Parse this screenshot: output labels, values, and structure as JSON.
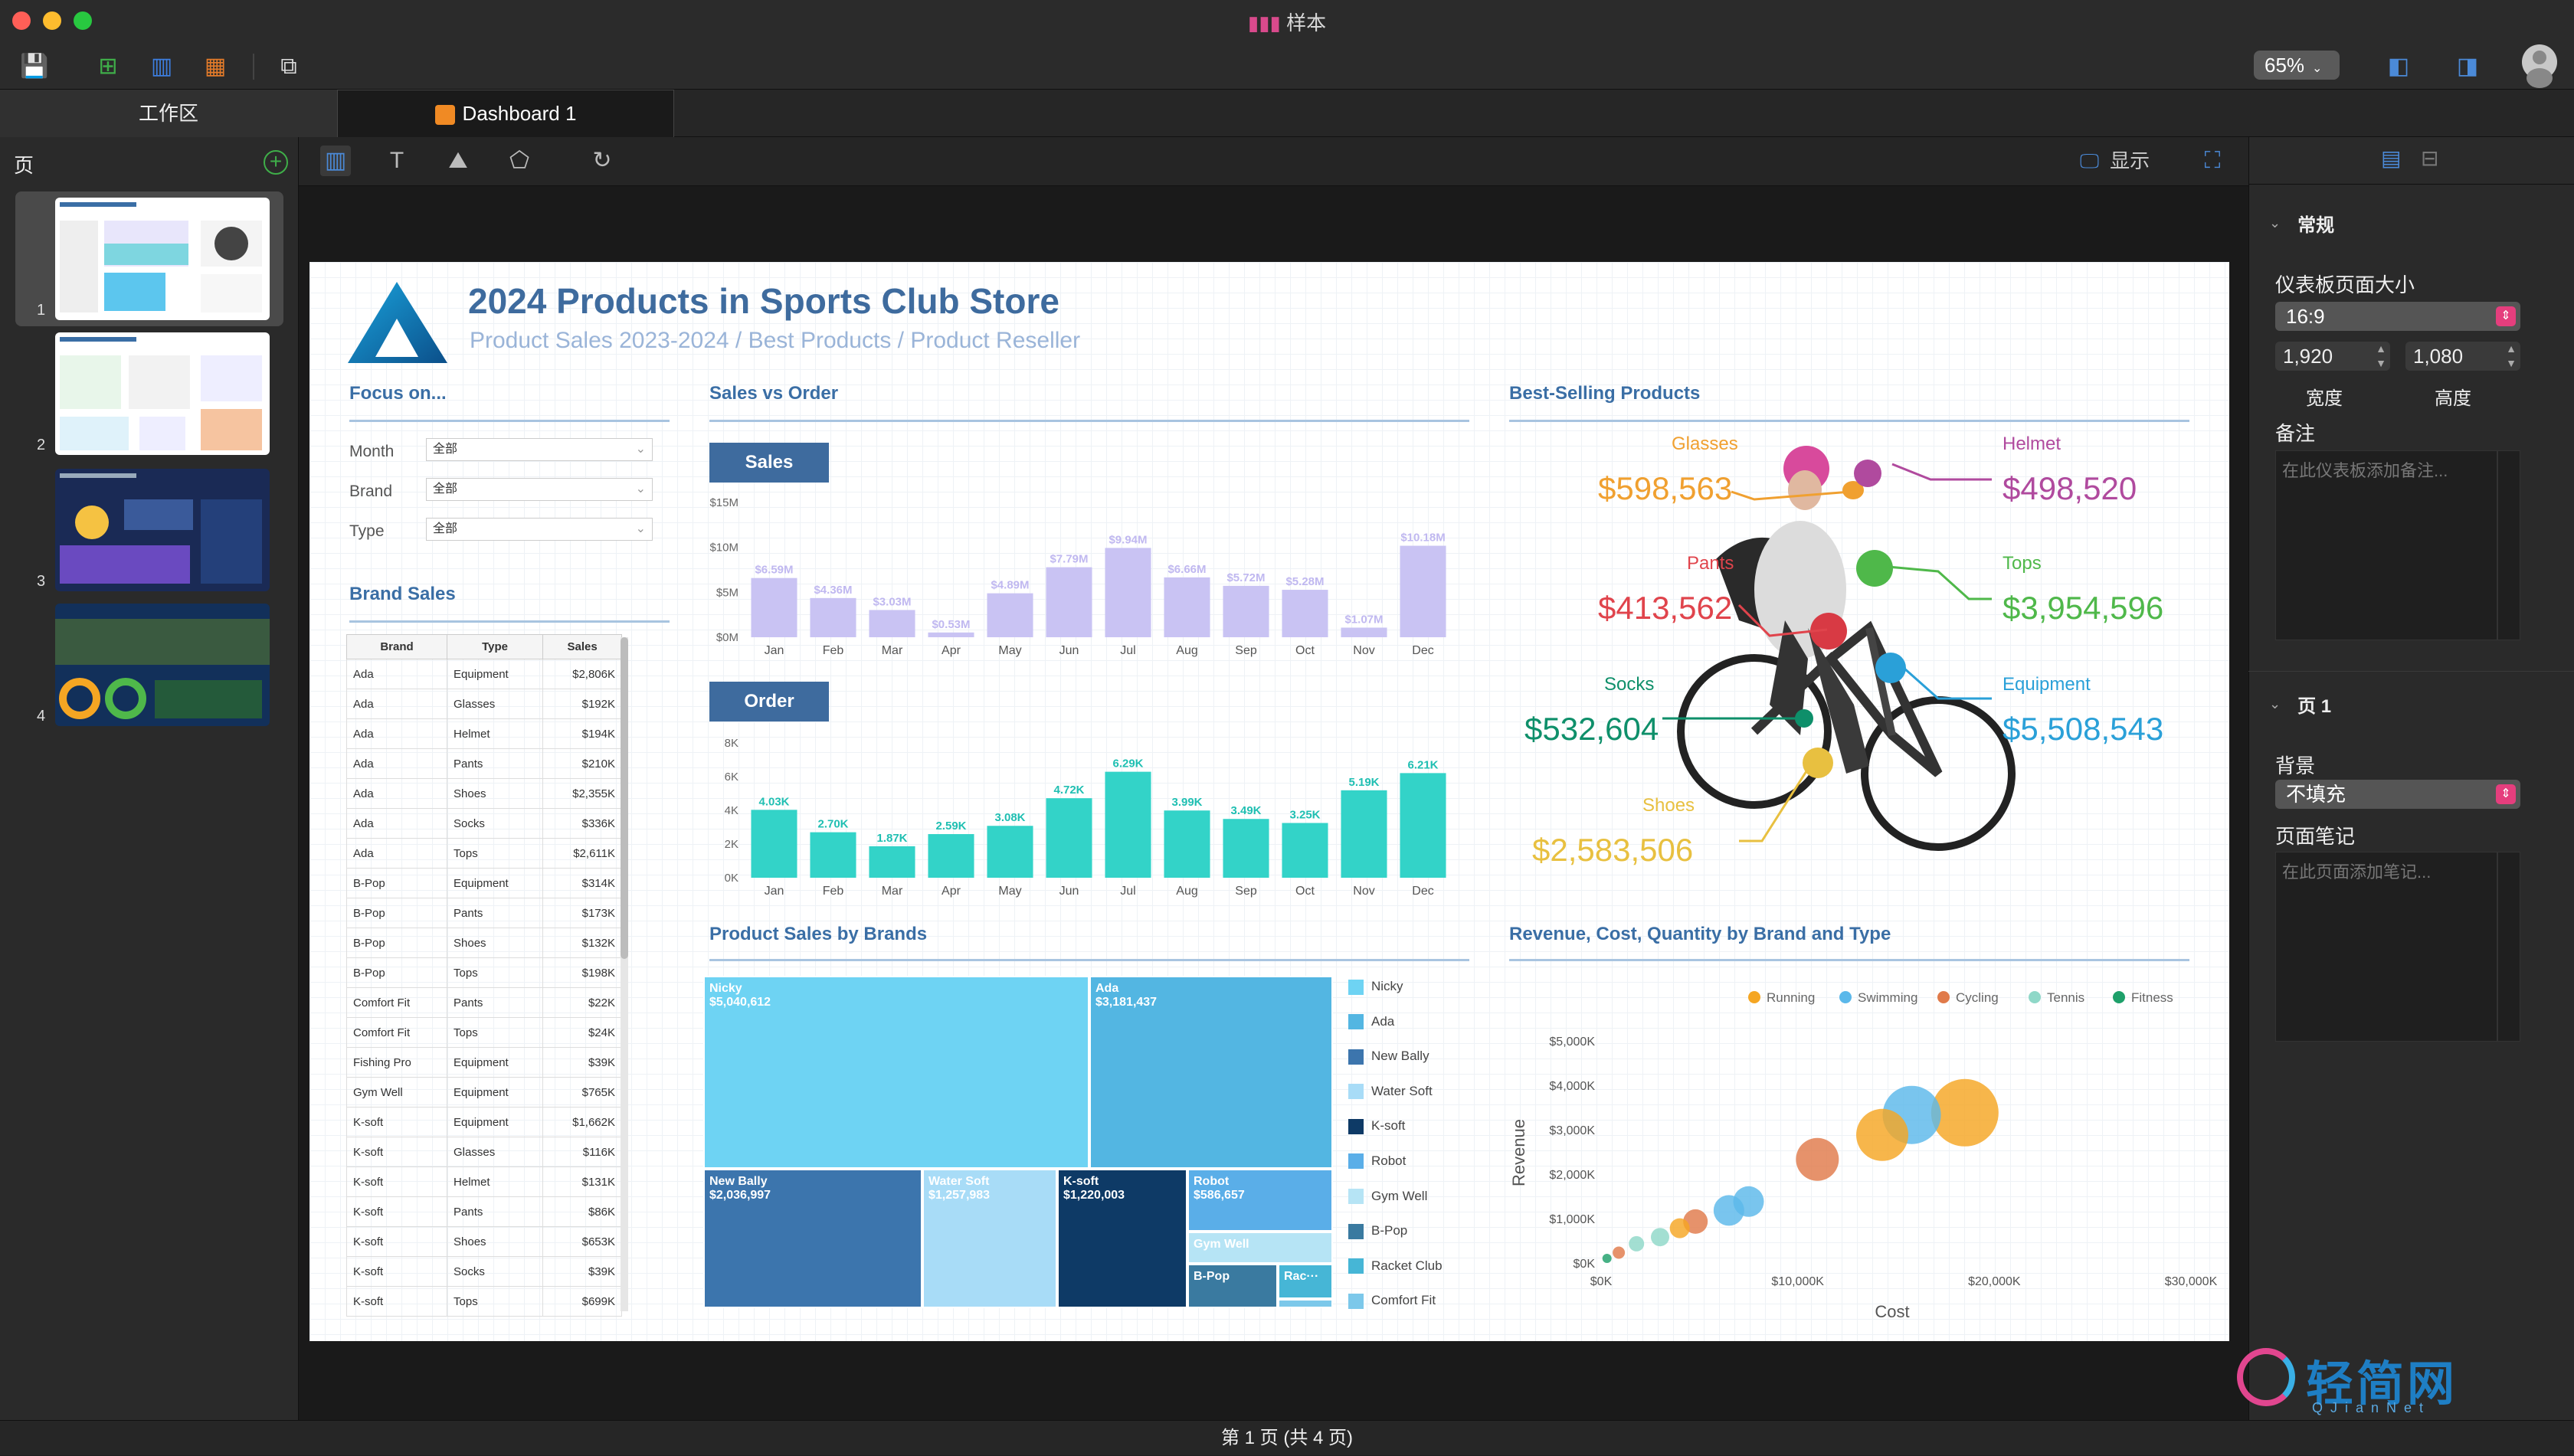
{
  "app": {
    "title": "样本"
  },
  "toolbar": {
    "zoom": "65%"
  },
  "tabs": {
    "workarea": "工作区",
    "dashboard": "Dashboard 1"
  },
  "left_panel": {
    "label": "页",
    "pages": [
      "1",
      "2",
      "3",
      "4"
    ]
  },
  "canvas_toolbar": {
    "display_label": "显示"
  },
  "dashboard": {
    "title": "2024 Products in Sports Club Store",
    "subtitle": "Product Sales 2023-2024 / Best Products / Product Reseller",
    "focus": {
      "heading": "Focus on...",
      "filters": [
        {
          "label": "Month",
          "value": "全部"
        },
        {
          "label": "Brand",
          "value": "全部"
        },
        {
          "label": "Type",
          "value": "全部"
        }
      ]
    },
    "brand_sales": {
      "heading": "Brand Sales",
      "columns": [
        "Brand",
        "Type",
        "Sales"
      ],
      "rows": [
        [
          "Ada",
          "Equipment",
          "$2,806K"
        ],
        [
          "Ada",
          "Glasses",
          "$192K"
        ],
        [
          "Ada",
          "Helmet",
          "$194K"
        ],
        [
          "Ada",
          "Pants",
          "$210K"
        ],
        [
          "Ada",
          "Shoes",
          "$2,355K"
        ],
        [
          "Ada",
          "Socks",
          "$336K"
        ],
        [
          "Ada",
          "Tops",
          "$2,611K"
        ],
        [
          "B-Pop",
          "Equipment",
          "$314K"
        ],
        [
          "B-Pop",
          "Pants",
          "$173K"
        ],
        [
          "B-Pop",
          "Shoes",
          "$132K"
        ],
        [
          "B-Pop",
          "Tops",
          "$198K"
        ],
        [
          "Comfort Fit",
          "Pants",
          "$22K"
        ],
        [
          "Comfort Fit",
          "Tops",
          "$24K"
        ],
        [
          "Fishing Pro",
          "Equipment",
          "$39K"
        ],
        [
          "Gym Well",
          "Equipment",
          "$765K"
        ],
        [
          "K-soft",
          "Equipment",
          "$1,662K"
        ],
        [
          "K-soft",
          "Glasses",
          "$116K"
        ],
        [
          "K-soft",
          "Helmet",
          "$131K"
        ],
        [
          "K-soft",
          "Pants",
          "$86K"
        ],
        [
          "K-soft",
          "Shoes",
          "$653K"
        ],
        [
          "K-soft",
          "Socks",
          "$39K"
        ],
        [
          "K-soft",
          "Tops",
          "$699K"
        ]
      ]
    },
    "sales_vs_order": {
      "heading": "Sales vs Order",
      "sales_badge": "Sales",
      "order_badge": "Order"
    },
    "best_selling": {
      "heading": "Best-Selling Products",
      "items": [
        {
          "label": "Glasses",
          "value": "$598,563",
          "color": "#f0a030"
        },
        {
          "label": "Helmet",
          "value": "$498,520",
          "color": "#b04a9e"
        },
        {
          "label": "Pants",
          "value": "$413,562",
          "color": "#e0444c"
        },
        {
          "label": "Tops",
          "value": "$3,954,596",
          "color": "#4fb84a"
        },
        {
          "label": "Socks",
          "value": "$532,604",
          "color": "#0e8f6a"
        },
        {
          "label": "Equipment",
          "value": "$5,508,543",
          "color": "#2aa0d8"
        },
        {
          "label": "Shoes",
          "value": "$2,583,506",
          "color": "#e8c040"
        }
      ]
    },
    "product_sales_by_brands": {
      "heading": "Product Sales by Brands",
      "legend": [
        {
          "name": "Nicky",
          "color": "#6ed3f3"
        },
        {
          "name": "Ada",
          "color": "#53b6e2"
        },
        {
          "name": "New Bally",
          "color": "#3c75ad"
        },
        {
          "name": "Water Soft",
          "color": "#a8dcf7"
        },
        {
          "name": "K-soft",
          "color": "#0e3a66"
        },
        {
          "name": "Robot",
          "color": "#5aaee8"
        },
        {
          "name": "Gym Well",
          "color": "#b6e4f5"
        },
        {
          "name": "B-Pop",
          "color": "#3a7aa0"
        },
        {
          "name": "Racket Club",
          "color": "#46b6d6"
        },
        {
          "name": "Comfort Fit",
          "color": "#7cc8ea"
        }
      ],
      "tiles": [
        {
          "name": "Nicky",
          "value": "$5,040,612"
        },
        {
          "name": "Ada",
          "value": "$3,181,437"
        },
        {
          "name": "New Bally",
          "value": "$2,036,997"
        },
        {
          "name": "Water Soft",
          "value": "$1,257,983"
        },
        {
          "name": "K-soft",
          "value": "$1,220,003"
        },
        {
          "name": "Robot",
          "value": "$586,657"
        },
        {
          "name": "Gym Well",
          "value": ""
        },
        {
          "name": "B-Pop",
          "value": ""
        },
        {
          "name": "Rac···",
          "value": ""
        }
      ]
    },
    "revenue_chart": {
      "heading": "Revenue, Cost, Quantity by Brand and Type"
    }
  },
  "right_panel": {
    "general": "常规",
    "size_label": "仪表板页面大小",
    "size_value": "16:9",
    "width": "1,920",
    "height": "1,080",
    "width_label": "宽度",
    "height_label": "高度",
    "notes_label": "备注",
    "notes_placeholder": "在此仪表板添加备注...",
    "page_section": "页 1",
    "bg_label": "背景",
    "bg_value": "不填充",
    "page_notes_label": "页面笔记",
    "page_notes_placeholder": "在此页面添加笔记..."
  },
  "status": {
    "page_text": "第 1 页 (共 4 页)"
  },
  "watermark": {
    "text": "轻简网",
    "sub": "QJianNet"
  },
  "chart_data": [
    {
      "type": "bar",
      "title": "Sales",
      "categories": [
        "Jan",
        "Feb",
        "Mar",
        "Apr",
        "May",
        "Jun",
        "Jul",
        "Aug",
        "Sep",
        "Oct",
        "Nov",
        "Dec"
      ],
      "values": [
        6.59,
        4.36,
        3.03,
        0.53,
        4.89,
        7.79,
        9.94,
        6.66,
        5.72,
        5.28,
        1.07,
        10.18
      ],
      "labels": [
        "$6.59M",
        "$4.36M",
        "$3.03M",
        "$0.53M",
        "$4.89M",
        "$7.79M",
        "$9.94M",
        "$6.66M",
        "$5.72M",
        "$5.28M",
        "$1.07M",
        "$10.18M"
      ],
      "yticks": [
        "$0M",
        "$5M",
        "$10M",
        "$15M"
      ],
      "ylim": [
        0,
        15
      ],
      "color": "#c9c3f3"
    },
    {
      "type": "bar",
      "title": "Order",
      "categories": [
        "Jan",
        "Feb",
        "Mar",
        "Apr",
        "May",
        "Jun",
        "Jul",
        "Aug",
        "Sep",
        "Oct",
        "Nov",
        "Dec"
      ],
      "values": [
        4.03,
        2.7,
        1.87,
        2.59,
        3.08,
        4.72,
        6.29,
        3.99,
        3.49,
        3.25,
        5.19,
        6.21
      ],
      "labels": [
        "4.03K",
        "2.70K",
        "1.87K",
        "2.59K",
        "3.08K",
        "4.72K",
        "6.29K",
        "3.99K",
        "3.49K",
        "3.25K",
        "5.19K",
        "6.21K"
      ],
      "yticks": [
        "0K",
        "2K",
        "4K",
        "6K",
        "8K"
      ],
      "ylim": [
        0,
        8
      ],
      "color": "#33d3c8"
    },
    {
      "type": "scatter",
      "title": "Revenue, Cost, Quantity by Brand and Type",
      "xlabel": "Cost",
      "ylabel": "Revenue",
      "xticks": [
        "$0K",
        "$10,000K",
        "$20,000K",
        "$30,000K"
      ],
      "yticks": [
        "$0K",
        "$1,000K",
        "$2,000K",
        "$3,000K",
        "$4,000K",
        "$5,000K"
      ],
      "xlim": [
        0,
        30000
      ],
      "ylim": [
        0,
        5000
      ],
      "legend": [
        {
          "name": "Running",
          "color": "#f5a623"
        },
        {
          "name": "Swimming",
          "color": "#5bb8ea"
        },
        {
          "name": "Cycling",
          "color": "#e07a4a"
        },
        {
          "name": "Tennis",
          "color": "#8fd8c8"
        },
        {
          "name": "Fitness",
          "color": "#1ea06a"
        }
      ],
      "points": [
        {
          "x": 18500,
          "y": 3400,
          "q": 44,
          "s": "Running"
        },
        {
          "x": 15800,
          "y": 3350,
          "q": 38,
          "s": "Swimming"
        },
        {
          "x": 14300,
          "y": 2900,
          "q": 34,
          "s": "Running"
        },
        {
          "x": 11000,
          "y": 2350,
          "q": 28,
          "s": "Cycling"
        },
        {
          "x": 7500,
          "y": 1400,
          "q": 20,
          "s": "Swimming"
        },
        {
          "x": 6500,
          "y": 1200,
          "q": 20,
          "s": "Swimming"
        },
        {
          "x": 4800,
          "y": 950,
          "q": 16,
          "s": "Cycling"
        },
        {
          "x": 4000,
          "y": 800,
          "q": 13,
          "s": "Running"
        },
        {
          "x": 3000,
          "y": 600,
          "q": 12,
          "s": "Tennis"
        },
        {
          "x": 1800,
          "y": 450,
          "q": 10,
          "s": "Tennis"
        },
        {
          "x": 900,
          "y": 250,
          "q": 8,
          "s": "Cycling"
        },
        {
          "x": 300,
          "y": 120,
          "q": 6,
          "s": "Fitness"
        }
      ]
    }
  ]
}
